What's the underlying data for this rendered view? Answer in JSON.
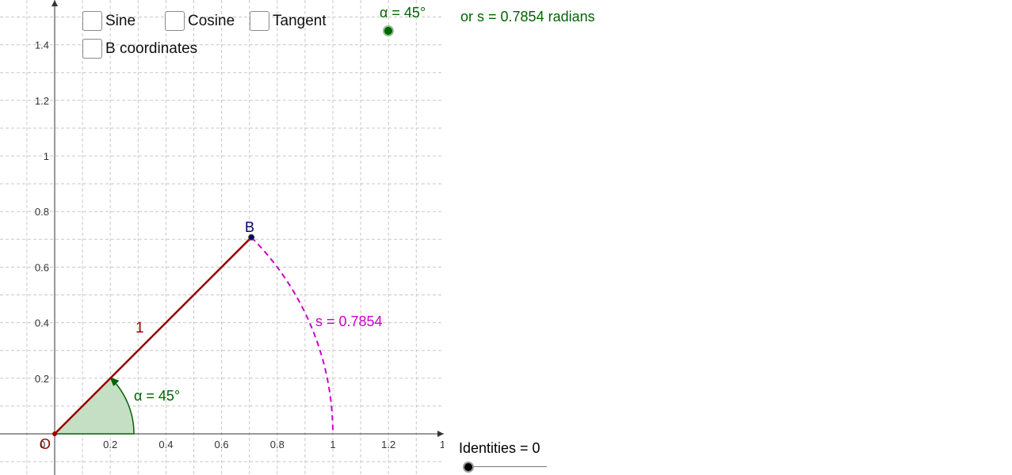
{
  "checkboxes": [
    {
      "label": "Sine",
      "checked": false
    },
    {
      "label": "Cosine",
      "checked": false
    },
    {
      "label": "Tangent",
      "checked": false
    },
    {
      "label": "B coordinates",
      "checked": false
    }
  ],
  "alpha_slider": {
    "label": "α = 45°",
    "value": 45,
    "color": "#006400"
  },
  "radians_text": "or s = 0.7854 radians",
  "identities_slider": {
    "label": "Identities = 0",
    "value": 0,
    "color": "#000000"
  },
  "axes": {
    "x_ticks": [
      "0.2",
      "0.4",
      "0.6",
      "0.8",
      "1",
      "1.2",
      "1."
    ],
    "y_ticks": [
      "0.2",
      "0.4",
      "0.6",
      "0.8",
      "1",
      "1.2",
      "1.4"
    ],
    "origin_label": "0"
  },
  "figure": {
    "point_b_label": "B",
    "radius_label": "1",
    "angle_label": "α = 45°",
    "arc_label": "s = 0.7854",
    "origin_point_label": "O",
    "colors": {
      "segment": "#990000",
      "arc": "#cc00cc",
      "angle": "#006400",
      "angle_fill": "#c5dfc5",
      "point": "#000066"
    }
  }
}
